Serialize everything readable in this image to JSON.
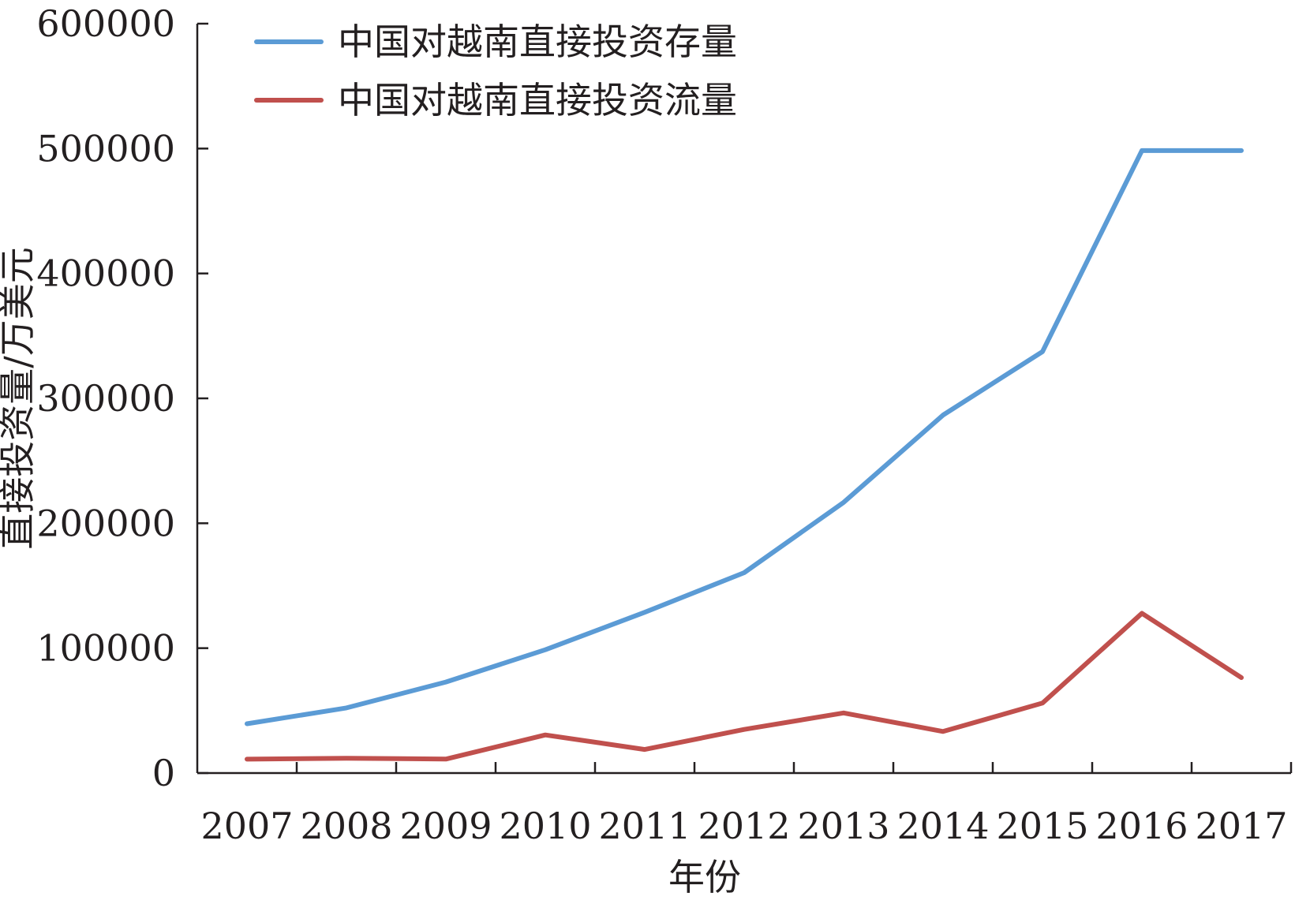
{
  "chart_data": {
    "type": "line",
    "title": "",
    "xlabel": "年份",
    "ylabel": "直接投资量/万美元",
    "categories": [
      "2007",
      "2008",
      "2009",
      "2010",
      "2011",
      "2012",
      "2013",
      "2014",
      "2015",
      "2016",
      "2017"
    ],
    "ylim": [
      0,
      600000
    ],
    "yticks": [
      "0",
      "100000",
      "200000",
      "300000",
      "400000",
      "500000",
      "600000"
    ],
    "grid": false,
    "legend_position": "top-left",
    "series": [
      {
        "name": "中国对越南直接投资存量",
        "color": "#5b9bd5",
        "values": [
          39500,
          52200,
          72900,
          98700,
          128700,
          160400,
          216700,
          286600,
          337400,
          498400,
          498400
        ]
      },
      {
        "name": "中国对越南直接投资流量",
        "color": "#c0504d",
        "values": [
          11100,
          11900,
          11200,
          30500,
          18900,
          34900,
          48100,
          33300,
          56000,
          127900,
          76400
        ]
      }
    ]
  }
}
